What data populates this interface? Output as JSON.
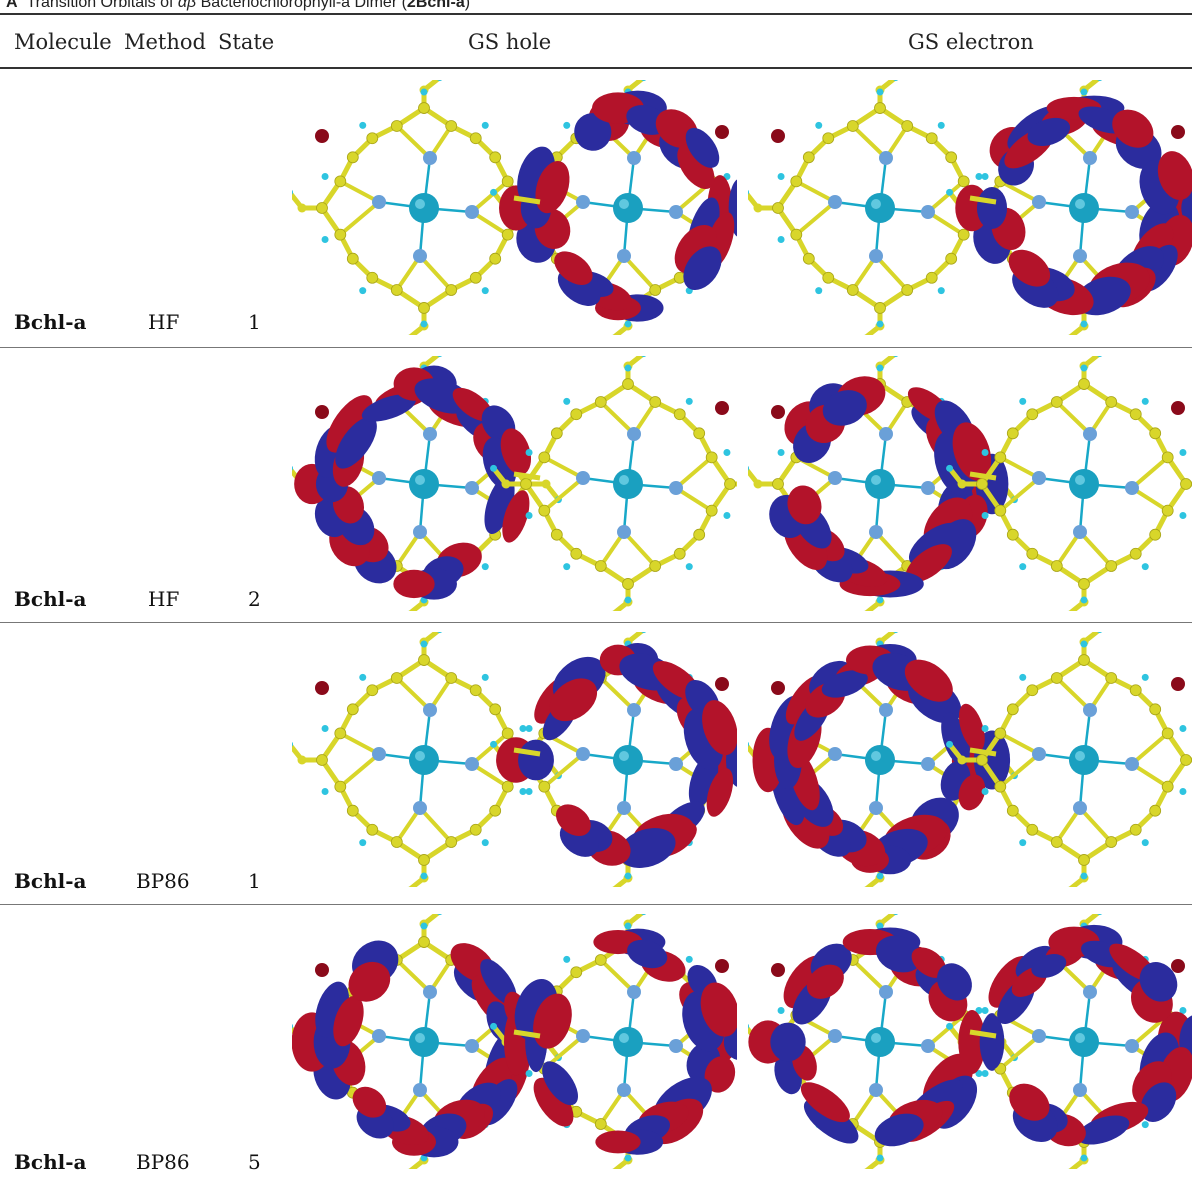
{
  "caption": {
    "prefix": "A",
    "title_pre": "Transition Orbitals of ",
    "title_symbol": "αβ",
    "title_post": " Bacteriochlorophyll-a Dimer (",
    "title_bold": "2Bchl-a",
    "title_close": ")"
  },
  "table": {
    "headers": [
      "Molecule",
      "Method",
      "State",
      "GS hole",
      "GS electron"
    ],
    "rows": [
      {
        "molecule": "Bchl-a",
        "method": "HF",
        "state": "1",
        "hole_side": "right",
        "electron_side": "right"
      },
      {
        "molecule": "Bchl-a",
        "method": "HF",
        "state": "2",
        "hole_side": "left",
        "electron_side": "left"
      },
      {
        "molecule": "Bchl-a",
        "method": "BP86",
        "state": "1",
        "hole_side": "right",
        "electron_side": "left"
      },
      {
        "molecule": "Bchl-a",
        "method": "BP86",
        "state": "5",
        "hole_side": "both",
        "electron_side": "both"
      }
    ]
  },
  "colors": {
    "lobe_red": "#b3132a",
    "lobe_blue": "#2b2c9e",
    "bond_yellow": "#d8d62a",
    "atom_cyan": "#18a8c8",
    "metal": "#1aa0c0",
    "nitrogen": "#6aa0d8",
    "hydrogen": "#2ec4e0",
    "oxygen": "#8a0a1a"
  },
  "icons": {
    "orbital_image": "molecular-orbital-render"
  }
}
